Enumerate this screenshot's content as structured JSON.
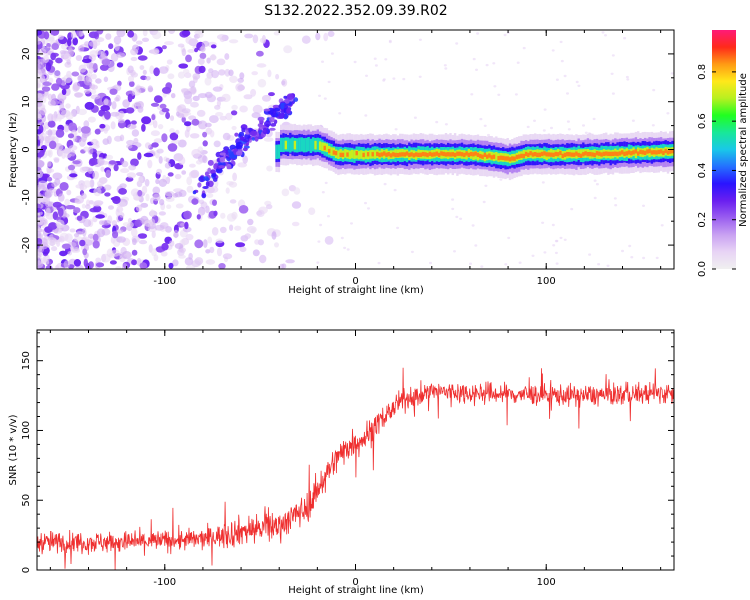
{
  "page_title": "S132.2022.352.09.39.R02",
  "colors": {
    "snr_line": "#ef2f2f",
    "colormap": [
      "#f0f0f0",
      "#e8d4f5",
      "#c9a2f2",
      "#9a5ef0",
      "#6a1ff0",
      "#2a14ff",
      "#2470ff",
      "#19c8e8",
      "#18e898",
      "#20ff20",
      "#b8f020",
      "#ffe81a",
      "#ff9a14",
      "#ff2a1a",
      "#ff1a78"
    ]
  },
  "chart_data": [
    {
      "type": "heatmap",
      "title": "",
      "xlabel": "Height of straight line (km)",
      "ylabel": "Frequency (Hz)",
      "xlim": [
        -167,
        167
      ],
      "ylim": [
        -25,
        25
      ],
      "x_ticks": [
        -100,
        0,
        100
      ],
      "y_ticks": [
        -20,
        -10,
        0,
        10,
        20
      ],
      "colorbar": {
        "label": "Normalized spectral amplitude",
        "range": [
          0,
          0.97
        ],
        "ticks": [
          0.0,
          0.2,
          0.4,
          0.6,
          0.8
        ]
      },
      "description_points": {
        "ridge_centerline_hz": [
          {
            "x": -40,
            "y": 1.0
          },
          {
            "x": -20,
            "y": 1.0
          },
          {
            "x": -10,
            "y": -1.0
          },
          {
            "x": 0,
            "y": -1.0
          },
          {
            "x": 20,
            "y": -1.0
          },
          {
            "x": 60,
            "y": -1.0
          },
          {
            "x": 72,
            "y": -1.5
          },
          {
            "x": 80,
            "y": -2.0
          },
          {
            "x": 90,
            "y": -1.0
          },
          {
            "x": 120,
            "y": -1.0
          },
          {
            "x": 160,
            "y": -0.5
          }
        ],
        "diagonal_streak": [
          {
            "x": -82,
            "y": -9
          },
          {
            "x": -70,
            "y": -3
          },
          {
            "x": -60,
            "y": 1
          },
          {
            "x": -50,
            "y": 4
          },
          {
            "x": -40,
            "y": 8
          },
          {
            "x": -32,
            "y": 11
          }
        ]
      }
    },
    {
      "type": "line",
      "title": "",
      "xlabel": "Height of straight line (km)",
      "ylabel": "SNR (10 * v/v)",
      "xlim": [
        -167,
        167
      ],
      "ylim": [
        0,
        172
      ],
      "x_ticks": [
        -100,
        0,
        100
      ],
      "y_ticks": [
        0,
        50,
        100,
        150
      ],
      "series": [
        {
          "color": "#ef2f2f",
          "trend": [
            {
              "x": -167,
              "y": 20
            },
            {
              "x": -120,
              "y": 20
            },
            {
              "x": -80,
              "y": 22
            },
            {
              "x": -60,
              "y": 28
            },
            {
              "x": -40,
              "y": 32
            },
            {
              "x": -25,
              "y": 45
            },
            {
              "x": -15,
              "y": 70
            },
            {
              "x": -5,
              "y": 88
            },
            {
              "x": 5,
              "y": 95
            },
            {
              "x": 15,
              "y": 110
            },
            {
              "x": 25,
              "y": 122
            },
            {
              "x": 40,
              "y": 128
            },
            {
              "x": 80,
              "y": 126
            },
            {
              "x": 120,
              "y": 125
            },
            {
              "x": 167,
              "y": 127
            }
          ],
          "noise_amplitude": 14
        }
      ]
    }
  ]
}
